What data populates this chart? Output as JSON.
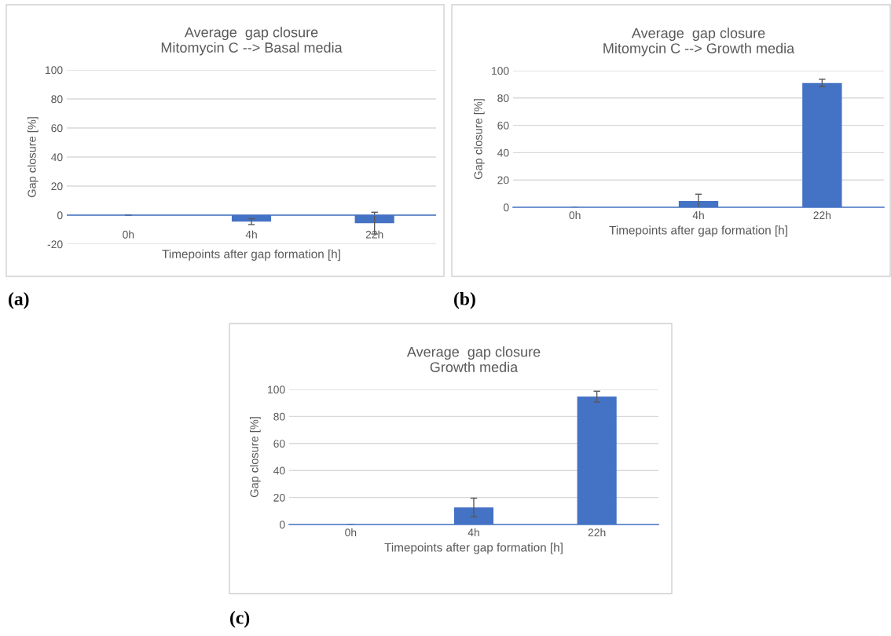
{
  "chart_data": [
    {
      "type": "bar",
      "title": "Average  gap closure\nMitomycin C --> Basal media",
      "xlabel": "Timepoints after gap formation [h]",
      "ylabel": "Gap closure [%]",
      "categories": [
        "0h",
        "4h",
        "22h"
      ],
      "values": [
        0,
        -4.5,
        -5.5
      ],
      "errors": [
        0,
        2,
        7.5
      ],
      "color": "#4472c4",
      "ylim": [
        -20,
        100
      ],
      "yticks": [
        -20,
        0,
        20,
        40,
        60,
        80,
        100
      ],
      "grid": "y",
      "ref_lines": [
        {
          "axis": "y",
          "value": 0,
          "color": "#4472c4"
        }
      ],
      "annotations": [
        "(a)"
      ]
    },
    {
      "type": "bar",
      "title": "Average  gap closure\nMitomycin C --> Growth media",
      "xlabel": "Timepoints after gap formation [h]",
      "ylabel": "Gap closure [%]",
      "categories": [
        "0h",
        "4h",
        "22h"
      ],
      "values": [
        0,
        4.6,
        91
      ],
      "errors": [
        0,
        5,
        2.7
      ],
      "color": "#4472c4",
      "ylim": [
        0,
        100
      ],
      "yticks": [
        0,
        20,
        40,
        60,
        80,
        100
      ],
      "grid": "y",
      "annotations": [
        "(b)"
      ]
    },
    {
      "type": "bar",
      "title": "Average  gap closure\nGrowth media",
      "xlabel": "Timepoints after gap formation [h]",
      "ylabel": "Gap closure [%]",
      "categories": [
        "0h",
        "4h",
        "22h"
      ],
      "values": [
        0,
        12.7,
        94.7
      ],
      "errors": [
        0,
        6.8,
        4
      ],
      "color": "#4472c4",
      "ylim": [
        0,
        100
      ],
      "yticks": [
        0,
        20,
        40,
        60,
        80,
        100
      ],
      "grid": "y",
      "annotations": [
        "(c)"
      ]
    }
  ]
}
